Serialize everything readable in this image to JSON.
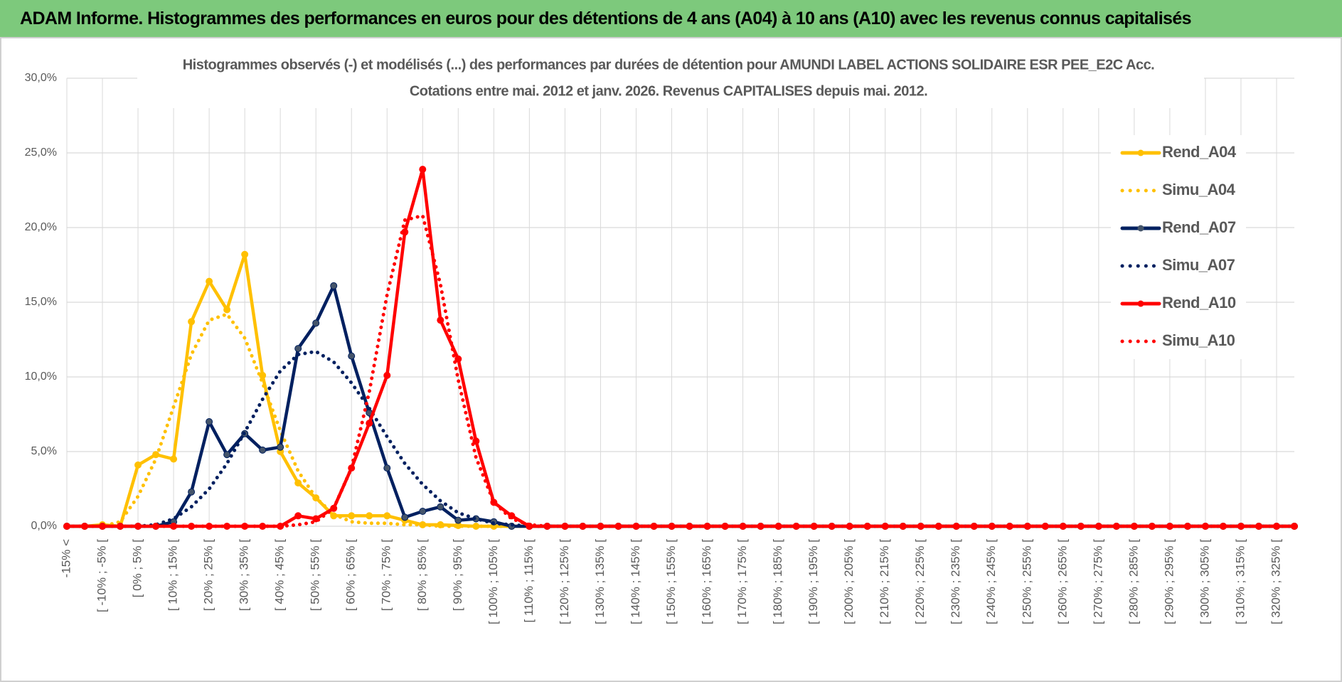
{
  "header": {
    "title": "ADAM Informe. Histogrammes des performances en euros pour des détentions de 4 ans (A04) à 10 ans (A10) avec les revenus connus capitalisés"
  },
  "chart_data": {
    "type": "line",
    "title": "Histogrammes observés (-) et modélisés (...) des performances par durées de détention pour AMUNDI LABEL ACTIONS SOLIDAIRE ESR PEE_E2C Acc.",
    "subtitle": "Cotations entre mai. 2012 et janv. 2026. Revenus CAPITALISES depuis mai. 2012.",
    "categories": [
      "-15% <",
      null,
      "[ -10% ; -5% [",
      null,
      "[ 0% ; 5% [",
      null,
      "[ 10% ; 15% [",
      null,
      "[ 20% ; 25% [",
      null,
      "[ 30% ; 35% [",
      null,
      "[ 40% ; 45% [",
      null,
      "[ 50% ; 55% [",
      null,
      "[ 60% ; 65% [",
      null,
      "[ 70% ; 75% [",
      null,
      "[ 80% ; 85% [",
      null,
      "[ 90% ; 95% [",
      null,
      "[ 100% ; 105% [",
      null,
      "[ 110% ; 115% [",
      null,
      "[ 120% ; 125% [",
      null,
      "[ 130% ; 135% [",
      null,
      "[ 140% ; 145% [",
      null,
      "[ 150% ; 155% [",
      null,
      "[ 160% ; 165% [",
      null,
      "[ 170% ; 175% [",
      null,
      "[ 180% ; 185% [",
      null,
      "[ 190% ; 195% [",
      null,
      "[ 200% ; 205% [",
      null,
      "[ 210% ; 215% [",
      null,
      "[ 220% ; 225% [",
      null,
      "[ 230% ; 235% [",
      null,
      "[ 240% ; 245% [",
      null,
      "[ 250% ; 255% [",
      null,
      "[ 260% ; 265% [",
      null,
      "[ 270% ; 275% [",
      null,
      "[ 280% ; 285% [",
      null,
      "[ 290% ; 295% [",
      null,
      "[ 300% ; 305% [",
      null,
      "[ 310% ; 315% [",
      null,
      "[ 320% ; 325% [",
      null
    ],
    "series": [
      {
        "name": "Rend_A04",
        "color": "#ffc000",
        "line_style": "solid",
        "markers": true,
        "values": [
          0,
          0,
          0.1,
          0,
          4.1,
          4.8,
          4.5,
          13.7,
          16.4,
          14.5,
          18.2,
          10.1,
          5.0,
          2.9,
          1.9,
          0.7,
          0.7,
          0.7,
          0.7,
          0.4,
          0.1,
          0.1,
          0.05,
          0,
          0,
          0,
          0,
          0,
          0,
          0,
          0,
          0,
          0,
          0,
          0,
          0,
          0,
          0,
          0,
          0,
          0,
          0,
          0,
          0,
          0,
          0,
          0,
          0,
          0,
          0,
          0,
          0,
          0,
          0,
          0,
          0,
          0,
          0,
          0,
          0,
          0,
          0,
          0,
          0,
          0,
          0,
          0,
          0,
          0,
          0
        ]
      },
      {
        "name": "Simu_A04",
        "color": "#ffc000",
        "line_style": "dotted",
        "markers": false,
        "values": [
          0,
          0,
          0,
          0.3,
          2.0,
          4.5,
          8.0,
          11.5,
          13.8,
          14.2,
          12.6,
          9.6,
          6.4,
          3.7,
          1.9,
          0.8,
          0.3,
          0.2,
          0.2,
          0.1,
          0.1,
          0,
          0,
          0,
          0,
          0,
          0,
          0,
          0,
          0,
          0,
          0,
          0,
          0,
          0,
          0,
          0,
          0,
          0,
          0,
          0,
          0,
          0,
          0,
          0,
          0,
          0,
          0,
          0,
          0,
          0,
          0,
          0,
          0,
          0,
          0,
          0,
          0,
          0,
          0,
          0,
          0,
          0,
          0,
          0,
          0,
          0,
          0,
          0,
          0
        ]
      },
      {
        "name": "Rend_A07",
        "color": "#002060",
        "line_style": "solid",
        "markers": true,
        "values": [
          0,
          0,
          0,
          0,
          0,
          0,
          0.3,
          2.3,
          7.0,
          4.8,
          6.2,
          5.1,
          5.3,
          11.9,
          13.6,
          16.1,
          11.4,
          7.6,
          3.9,
          0.6,
          1.0,
          1.3,
          0.4,
          0.5,
          0.3,
          0,
          0,
          0,
          0,
          0,
          0,
          0,
          0,
          0,
          0,
          0,
          0,
          0,
          0,
          0,
          0,
          0,
          0,
          0,
          0,
          0,
          0,
          0,
          0,
          0,
          0,
          0,
          0,
          0,
          0,
          0,
          0,
          0,
          0,
          0,
          0,
          0,
          0,
          0,
          0,
          0,
          0,
          0,
          0,
          0
        ]
      },
      {
        "name": "Simu_A07",
        "color": "#002060",
        "line_style": "dotted",
        "markers": false,
        "values": [
          0,
          0,
          0,
          0,
          0,
          0.1,
          0.5,
          1.3,
          2.5,
          4.2,
          6.3,
          8.5,
          10.4,
          11.5,
          11.7,
          11.0,
          9.6,
          7.9,
          6.0,
          4.2,
          2.8,
          1.7,
          0.9,
          0.5,
          0.2,
          0.1,
          0,
          0,
          0,
          0,
          0,
          0,
          0,
          0,
          0,
          0,
          0,
          0,
          0,
          0,
          0,
          0,
          0,
          0,
          0,
          0,
          0,
          0,
          0,
          0,
          0,
          0,
          0,
          0,
          0,
          0,
          0,
          0,
          0,
          0,
          0,
          0,
          0,
          0,
          0,
          0,
          0,
          0,
          0,
          0
        ]
      },
      {
        "name": "Rend_A10",
        "color": "#ff0000",
        "line_style": "solid",
        "markers": true,
        "values": [
          0,
          0,
          0,
          0,
          0,
          0,
          0,
          0,
          0,
          0,
          0,
          0,
          0,
          0.7,
          0.5,
          1.2,
          3.9,
          6.9,
          10.1,
          19.7,
          23.9,
          13.8,
          11.2,
          5.7,
          1.6,
          0.7,
          0,
          0,
          0,
          0,
          0,
          0,
          0,
          0,
          0,
          0,
          0,
          0,
          0,
          0,
          0,
          0,
          0,
          0,
          0,
          0,
          0,
          0,
          0,
          0,
          0,
          0,
          0,
          0,
          0,
          0,
          0,
          0,
          0,
          0,
          0,
          0,
          0,
          0,
          0,
          0,
          0,
          0,
          0,
          0
        ]
      },
      {
        "name": "Simu_A10",
        "color": "#ff0000",
        "line_style": "dotted",
        "markers": false,
        "values": [
          0,
          0,
          0,
          0,
          0,
          0,
          0,
          0,
          0,
          0,
          0,
          0,
          0,
          0.1,
          0.3,
          1.2,
          3.9,
          9.0,
          15.5,
          20.5,
          20.8,
          16.2,
          9.8,
          4.6,
          1.6,
          0.5,
          0.1,
          0,
          0,
          0,
          0,
          0,
          0,
          0,
          0,
          0,
          0,
          0,
          0,
          0,
          0,
          0,
          0,
          0,
          0,
          0,
          0,
          0,
          0,
          0,
          0,
          0,
          0,
          0,
          0,
          0,
          0,
          0,
          0,
          0,
          0,
          0,
          0,
          0,
          0,
          0,
          0,
          0,
          0,
          0
        ]
      }
    ],
    "ylim": [
      0,
      30
    ],
    "yticks": [
      {
        "value": 0,
        "label": "0,0%"
      },
      {
        "value": 5,
        "label": "5,0%"
      },
      {
        "value": 10,
        "label": "10,0%"
      },
      {
        "value": 15,
        "label": "15,0%"
      },
      {
        "value": 20,
        "label": "20,0%"
      },
      {
        "value": 25,
        "label": "25,0%"
      },
      {
        "value": 30,
        "label": "30,0%"
      }
    ],
    "grid": true,
    "legend": "right"
  }
}
